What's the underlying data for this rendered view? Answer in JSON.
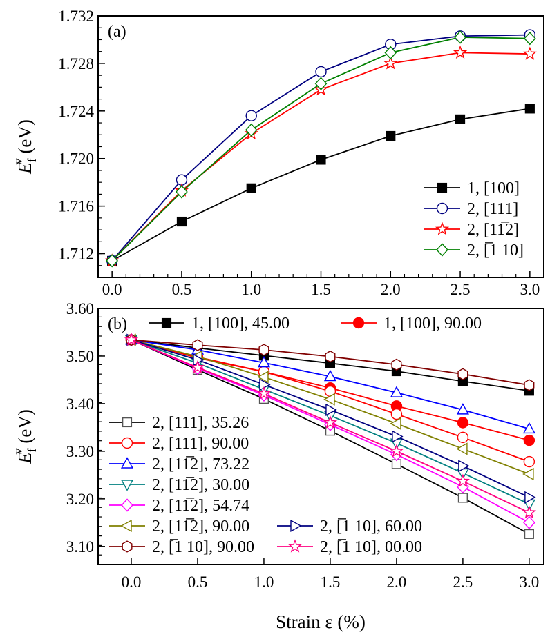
{
  "chart_data": [
    {
      "type": "line",
      "panel_label": "(a)",
      "ylabel": {
        "base": "E",
        "sub": "f",
        "sup": "v",
        "unit": " (eV)"
      },
      "xlim": [
        -0.1,
        3.1
      ],
      "ylim": [
        1.71,
        1.732
      ],
      "x_ticks": [
        "0.0",
        "0.5",
        "1.0",
        "1.5",
        "2.0",
        "2.5",
        "3.0"
      ],
      "y_ticks": [
        "1.712",
        "1.716",
        "1.720",
        "1.724",
        "1.728",
        "1.732"
      ],
      "legend_placement": "bottom-right",
      "grid": false,
      "x": [
        0.0,
        0.5,
        1.0,
        1.5,
        2.0,
        2.5,
        3.0
      ],
      "series": [
        {
          "name": "1, [100]",
          "color": "#000000",
          "marker": "square",
          "filled": true,
          "values": [
            1.7114,
            1.7147,
            1.7175,
            1.7199,
            1.7219,
            1.7233,
            1.7242
          ]
        },
        {
          "name": "2, [111]",
          "color": "#000080",
          "marker": "circle",
          "filled": false,
          "values": [
            1.7114,
            1.7182,
            1.7236,
            1.7273,
            1.7296,
            1.7303,
            1.7304
          ]
        },
        {
          "name": "2, [11̅2]",
          "color": "#ff0000",
          "marker": "star",
          "filled": false,
          "values": [
            1.7114,
            1.7173,
            1.7221,
            1.7258,
            1.728,
            1.7289,
            1.7288
          ]
        },
        {
          "name": "2, [̅1 10]",
          "color": "#008000",
          "marker": "diamond",
          "filled": false,
          "values": [
            1.7114,
            1.7172,
            1.7224,
            1.7263,
            1.7289,
            1.7302,
            1.7301
          ]
        }
      ]
    },
    {
      "type": "line",
      "panel_label": "(b)",
      "xlabel": "Strain ε (%)",
      "ylabel": {
        "base": "E",
        "sub": "f",
        "sup": "v",
        "unit": " (eV)"
      },
      "xlim": [
        -0.25,
        3.11
      ],
      "ylim": [
        3.062,
        3.6
      ],
      "x_ticks": [
        "0.0",
        "0.5",
        "1.0",
        "1.5",
        "2.0",
        "2.5",
        "3.0"
      ],
      "y_ticks": [
        "3.10",
        "3.20",
        "3.30",
        "3.40",
        "3.50",
        "3.60"
      ],
      "legend_placement": "top and left",
      "grid": false,
      "x": [
        0.0,
        0.5,
        1.0,
        1.5,
        2.0,
        2.5,
        3.0
      ],
      "series": [
        {
          "name": "1, [100], 45.00",
          "color": "#000000",
          "marker": "square",
          "filled": true,
          "values": [
            3.534,
            3.517,
            3.501,
            3.485,
            3.468,
            3.447,
            3.427
          ]
        },
        {
          "name": "1, [100], 90.00",
          "color": "#ff0000",
          "marker": "circle",
          "filled": true,
          "values": [
            3.534,
            3.498,
            3.467,
            3.433,
            3.395,
            3.36,
            3.323
          ]
        },
        {
          "name": "2, [111], 35.26",
          "color": "#000000",
          "stroke": "#555555",
          "marker": "square",
          "filled": false,
          "values": [
            3.534,
            3.471,
            3.41,
            3.343,
            3.273,
            3.202,
            3.126
          ]
        },
        {
          "name": "2, [111], 90.00",
          "color": "#ff0000",
          "marker": "circle",
          "filled": false,
          "values": [
            3.534,
            3.496,
            3.467,
            3.426,
            3.378,
            3.329,
            3.278
          ]
        },
        {
          "name": "2, [11̅2], 73.22",
          "color": "#0000ff",
          "marker": "triangle-up",
          "filled": false,
          "values": [
            3.534,
            3.513,
            3.486,
            3.457,
            3.423,
            3.387,
            3.347
          ]
        },
        {
          "name": "2, [11̅2], 30.00",
          "color": "#008080",
          "marker": "triangle-down",
          "filled": false,
          "values": [
            3.534,
            3.485,
            3.43,
            3.375,
            3.317,
            3.254,
            3.189
          ]
        },
        {
          "name": "2, [11̅2], 54.74",
          "color": "#ff00ff",
          "marker": "diamond",
          "filled": false,
          "values": [
            3.534,
            3.474,
            3.418,
            3.356,
            3.293,
            3.225,
            3.15
          ]
        },
        {
          "name": "2, [11̅2], 90.00",
          "color": "#808000",
          "marker": "triangle-left",
          "filled": false,
          "values": [
            3.534,
            3.499,
            3.456,
            3.409,
            3.358,
            3.305,
            3.252
          ]
        },
        {
          "name": "2, [̅1 10], 60.00",
          "color": "#000080",
          "marker": "triangle-right",
          "filled": false,
          "values": [
            3.534,
            3.492,
            3.44,
            3.387,
            3.331,
            3.269,
            3.203
          ]
        },
        {
          "name": "2, [̅1 10], 90.00",
          "color": "#800000",
          "marker": "hexagon",
          "filled": false,
          "values": [
            3.534,
            3.523,
            3.513,
            3.499,
            3.482,
            3.462,
            3.439
          ]
        },
        {
          "name": "2, [̅1 10], 00.00",
          "color": "#ff0080",
          "marker": "star",
          "filled": false,
          "values": [
            3.534,
            3.476,
            3.421,
            3.36,
            3.3,
            3.237,
            3.171
          ]
        }
      ]
    }
  ]
}
